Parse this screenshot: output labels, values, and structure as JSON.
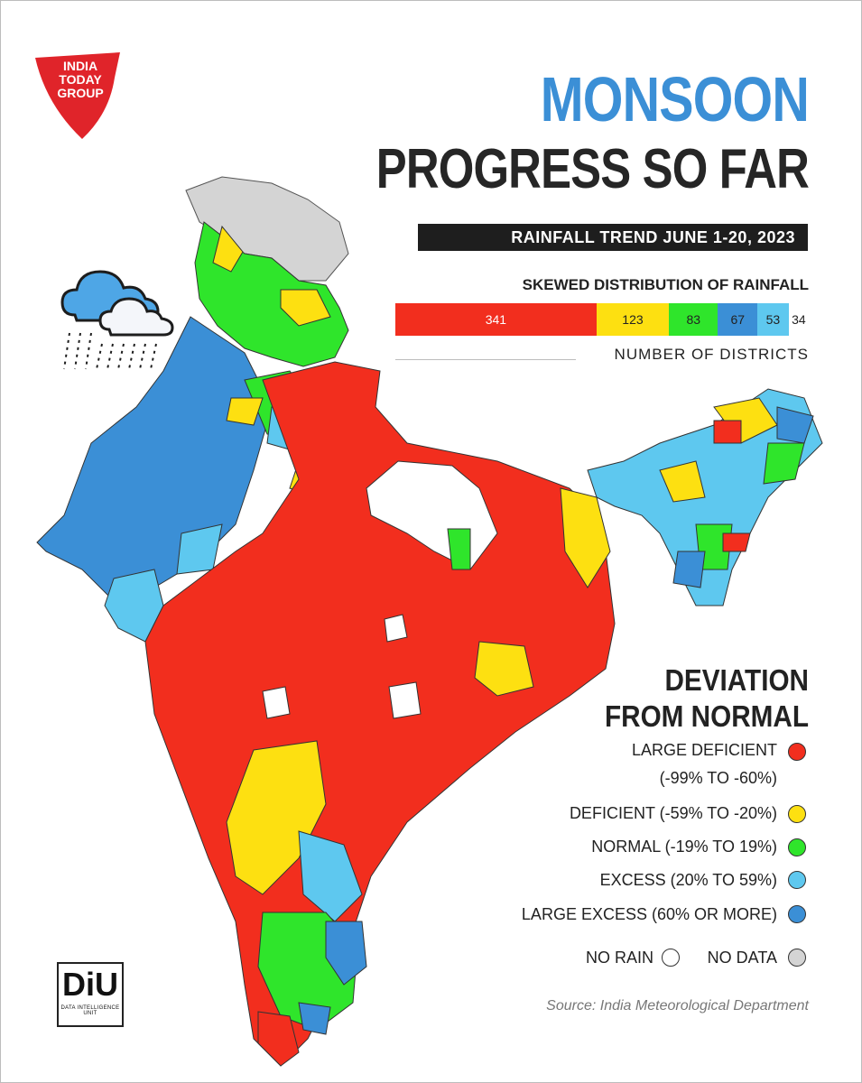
{
  "brand": {
    "line1": "INDIA",
    "line2": "TODAY",
    "line3": "GROUP"
  },
  "title": {
    "line1": "MONSOON",
    "line2": "PROGRESS SO FAR"
  },
  "subtitle": "RAINFALL TREND JUNE 1-20, 2023",
  "distribution": {
    "heading": "SKEWED DISTRIBUTION OF RAINFALL",
    "caption": "NUMBER OF DISTRICTS",
    "segments": [
      {
        "label": "341",
        "value": 341,
        "color": "#f22e1e"
      },
      {
        "label": "123",
        "value": 123,
        "color": "#fde011"
      },
      {
        "label": "83",
        "value": 83,
        "color": "#2fe52b"
      },
      {
        "label": "67",
        "value": 67,
        "color": "#3b8fd6"
      },
      {
        "label": "53",
        "value": 53,
        "color": "#5ec8ef"
      },
      {
        "label": "34",
        "value": 34,
        "color": "#ffffff"
      }
    ]
  },
  "legend": {
    "heading_line1": "DEVIATION",
    "heading_line2": "FROM NORMAL",
    "large_deficient_line1": "LARGE DEFICIENT",
    "large_deficient_line2": "(-99% TO -60%)",
    "deficient": "DEFICIENT (-59% TO -20%)",
    "normal": "NORMAL (-19% TO 19%)",
    "excess": "EXCESS (20% TO 59%)",
    "large_excess": "LARGE EXCESS (60% OR MORE)",
    "no_rain": "NO RAIN",
    "no_data": "NO DATA",
    "colors": {
      "large_deficient": "#f22e1e",
      "deficient": "#fde011",
      "normal": "#2fe52b",
      "excess": "#5ec8ef",
      "large_excess": "#3b8fd6",
      "no_rain": "#ffffff",
      "no_data": "#d4d4d4"
    }
  },
  "diu": {
    "mark": "DiU",
    "label": "DATA INTELLIGENCE UNIT"
  },
  "source": "Source: India Meteorological Department"
}
